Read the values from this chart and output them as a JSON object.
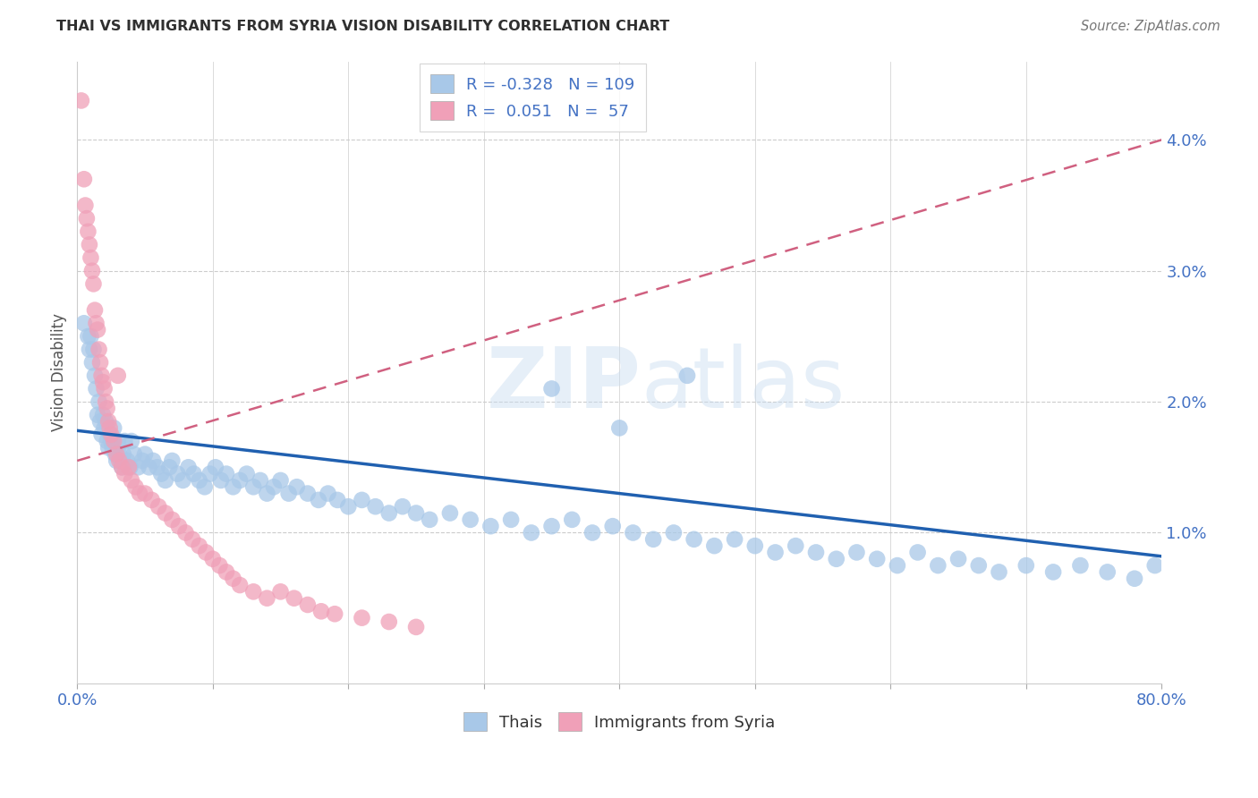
{
  "title": "THAI VS IMMIGRANTS FROM SYRIA VISION DISABILITY CORRELATION CHART",
  "source": "Source: ZipAtlas.com",
  "ylabel": "Vision Disability",
  "xlim": [
    0.0,
    80.0
  ],
  "ylim": [
    -0.15,
    4.6
  ],
  "yticks": [
    1.0,
    2.0,
    3.0,
    4.0
  ],
  "ytick_labels": [
    "1.0%",
    "2.0%",
    "3.0%",
    "4.0%"
  ],
  "xticks": [
    0,
    10,
    20,
    30,
    40,
    50,
    60,
    70,
    80
  ],
  "xtick_labels": [
    "0.0%",
    "",
    "",
    "",
    "",
    "",
    "",
    "",
    "80.0%"
  ],
  "blue_color": "#A8C8E8",
  "pink_color": "#F0A0B8",
  "blue_line_color": "#2060B0",
  "pink_line_color": "#D06080",
  "title_color": "#303030",
  "axis_label_color": "#4472C4",
  "watermark": "ZIPatlas",
  "thais_x": [
    0.5,
    0.8,
    0.9,
    1.0,
    1.1,
    1.2,
    1.3,
    1.4,
    1.5,
    1.6,
    1.7,
    1.8,
    1.9,
    2.0,
    2.1,
    2.2,
    2.3,
    2.4,
    2.5,
    2.6,
    2.7,
    2.8,
    2.9,
    3.0,
    3.1,
    3.2,
    3.3,
    3.4,
    3.5,
    3.7,
    3.9,
    4.0,
    4.2,
    4.5,
    4.8,
    5.0,
    5.3,
    5.6,
    5.9,
    6.2,
    6.5,
    6.8,
    7.0,
    7.4,
    7.8,
    8.2,
    8.6,
    9.0,
    9.4,
    9.8,
    10.2,
    10.6,
    11.0,
    11.5,
    12.0,
    12.5,
    13.0,
    13.5,
    14.0,
    14.5,
    15.0,
    15.6,
    16.2,
    17.0,
    17.8,
    18.5,
    19.2,
    20.0,
    21.0,
    22.0,
    23.0,
    24.0,
    25.0,
    26.0,
    27.5,
    29.0,
    30.5,
    32.0,
    33.5,
    35.0,
    36.5,
    38.0,
    39.5,
    41.0,
    42.5,
    44.0,
    45.5,
    47.0,
    48.5,
    50.0,
    51.5,
    53.0,
    54.5,
    56.0,
    57.5,
    59.0,
    60.5,
    62.0,
    63.5,
    65.0,
    66.5,
    68.0,
    70.0,
    72.0,
    74.0,
    76.0,
    78.0,
    79.5,
    35.0,
    40.0,
    45.0
  ],
  "thais_y": [
    2.6,
    2.5,
    2.4,
    2.5,
    2.3,
    2.4,
    2.2,
    2.1,
    1.9,
    2.0,
    1.85,
    1.75,
    1.9,
    1.8,
    1.85,
    1.7,
    1.65,
    1.75,
    1.7,
    1.65,
    1.8,
    1.6,
    1.55,
    1.7,
    1.6,
    1.55,
    1.5,
    1.6,
    1.7,
    1.55,
    1.5,
    1.7,
    1.6,
    1.5,
    1.55,
    1.6,
    1.5,
    1.55,
    1.5,
    1.45,
    1.4,
    1.5,
    1.55,
    1.45,
    1.4,
    1.5,
    1.45,
    1.4,
    1.35,
    1.45,
    1.5,
    1.4,
    1.45,
    1.35,
    1.4,
    1.45,
    1.35,
    1.4,
    1.3,
    1.35,
    1.4,
    1.3,
    1.35,
    1.3,
    1.25,
    1.3,
    1.25,
    1.2,
    1.25,
    1.2,
    1.15,
    1.2,
    1.15,
    1.1,
    1.15,
    1.1,
    1.05,
    1.1,
    1.0,
    1.05,
    1.1,
    1.0,
    1.05,
    1.0,
    0.95,
    1.0,
    0.95,
    0.9,
    0.95,
    0.9,
    0.85,
    0.9,
    0.85,
    0.8,
    0.85,
    0.8,
    0.75,
    0.85,
    0.75,
    0.8,
    0.75,
    0.7,
    0.75,
    0.7,
    0.75,
    0.7,
    0.65,
    0.75,
    2.1,
    1.8,
    2.2
  ],
  "syria_x": [
    0.3,
    0.5,
    0.6,
    0.7,
    0.8,
    0.9,
    1.0,
    1.1,
    1.2,
    1.3,
    1.4,
    1.5,
    1.6,
    1.7,
    1.8,
    1.9,
    2.0,
    2.1,
    2.2,
    2.3,
    2.4,
    2.5,
    2.7,
    2.9,
    3.1,
    3.3,
    3.5,
    3.8,
    4.0,
    4.3,
    4.6,
    5.0,
    5.5,
    6.0,
    6.5,
    7.0,
    7.5,
    8.0,
    8.5,
    9.0,
    9.5,
    10.0,
    10.5,
    11.0,
    11.5,
    12.0,
    13.0,
    14.0,
    15.0,
    16.0,
    17.0,
    18.0,
    19.0,
    21.0,
    23.0,
    25.0,
    3.0
  ],
  "syria_y": [
    4.3,
    3.7,
    3.5,
    3.4,
    3.3,
    3.2,
    3.1,
    3.0,
    2.9,
    2.7,
    2.6,
    2.55,
    2.4,
    2.3,
    2.2,
    2.15,
    2.1,
    2.0,
    1.95,
    1.85,
    1.8,
    1.75,
    1.7,
    1.6,
    1.55,
    1.5,
    1.45,
    1.5,
    1.4,
    1.35,
    1.3,
    1.3,
    1.25,
    1.2,
    1.15,
    1.1,
    1.05,
    1.0,
    0.95,
    0.9,
    0.85,
    0.8,
    0.75,
    0.7,
    0.65,
    0.6,
    0.55,
    0.5,
    0.55,
    0.5,
    0.45,
    0.4,
    0.38,
    0.35,
    0.32,
    0.28,
    2.2
  ],
  "blue_trend_x": [
    0.0,
    80.0
  ],
  "blue_trend_y": [
    1.78,
    0.82
  ],
  "pink_trend_x": [
    0.0,
    80.0
  ],
  "pink_trend_y": [
    1.55,
    4.0
  ]
}
